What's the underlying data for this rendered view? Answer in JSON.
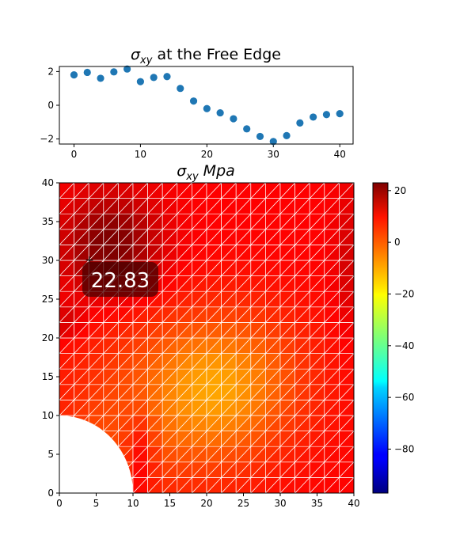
{
  "chart_data": [
    {
      "type": "scatter",
      "title": "σxy at the Free Edge",
      "title_main": "σ",
      "title_sub": "xy",
      "title_rest": " at the Free Edge",
      "xlim": [
        -2.2,
        42
      ],
      "ylim": [
        -2.3,
        2.3
      ],
      "xticks": [
        0,
        10,
        20,
        30,
        40
      ],
      "yticks": [
        -2,
        0,
        2
      ],
      "x": [
        0,
        2,
        4,
        6,
        8,
        10,
        12,
        14,
        16,
        18,
        20,
        22,
        24,
        26,
        28,
        30,
        32,
        34,
        36,
        38,
        40
      ],
      "y": [
        1.8,
        1.95,
        1.6,
        1.98,
        2.15,
        1.4,
        1.65,
        1.7,
        1.0,
        0.25,
        -0.2,
        -0.45,
        -0.8,
        -1.4,
        -1.85,
        -2.15,
        -1.8,
        -1.05,
        -0.7,
        -0.55,
        -0.5
      ],
      "marker_color": "#1f77b4"
    },
    {
      "type": "heatmap",
      "title": "σxy Mpa",
      "title_main": "σ",
      "title_sub": "xy",
      "title_rest": " Mpa",
      "xlim": [
        0,
        40
      ],
      "ylim": [
        0,
        40
      ],
      "xticks": [
        0,
        5,
        10,
        15,
        20,
        25,
        30,
        35,
        40
      ],
      "yticks": [
        0,
        5,
        10,
        15,
        20,
        25,
        30,
        35,
        40
      ],
      "hole_radius": 10,
      "colormap": "jet",
      "colorbar": {
        "min": -97,
        "max": 23,
        "ticks": [
          20,
          0,
          -20,
          -40,
          -60,
          -80
        ],
        "tick_labels": [
          "20",
          "0",
          "−20",
          "−40",
          "−60",
          "−80"
        ]
      },
      "annotation": {
        "text": "22.83",
        "x": 4,
        "y": 30
      },
      "mesh_color": "#ffffff"
    }
  ]
}
